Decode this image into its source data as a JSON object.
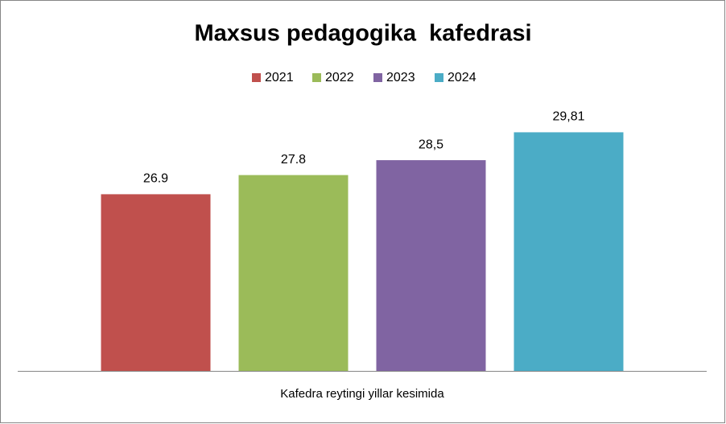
{
  "chart_data": {
    "type": "bar",
    "title": "Maxsus pedagogika  kafedrasi",
    "categories": [
      "Kafedra reytingi yillar kesimida"
    ],
    "series": [
      {
        "name": "2021",
        "color": "#c0504d",
        "values": [
          26.9
        ]
      },
      {
        "name": "2022",
        "color": "#9bbb59",
        "values": [
          27.8
        ]
      },
      {
        "name": "2023",
        "color": "#8064a2",
        "values": [
          28.5
        ],
        "value_labels": [
          "28,5"
        ]
      },
      {
        "name": "2024",
        "color": "#4bacc6",
        "values": [
          29.81
        ],
        "value_labels": [
          "29,81"
        ]
      }
    ],
    "ylim": [
      18.6,
      31.3
    ],
    "legend": "top"
  }
}
